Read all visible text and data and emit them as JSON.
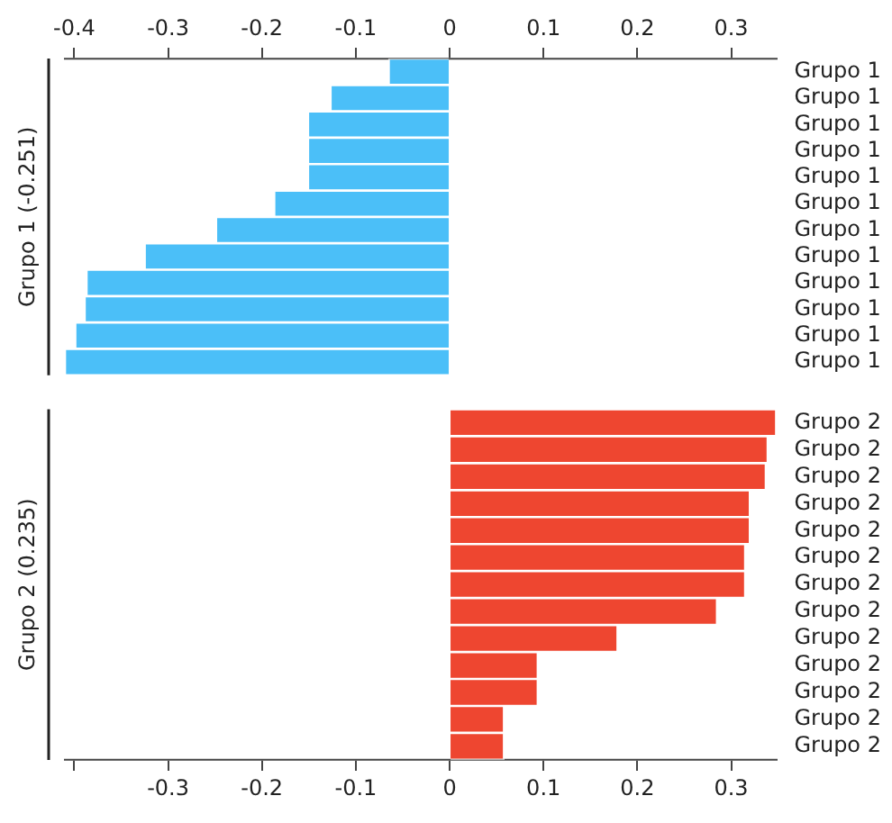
{
  "chart_data": [
    {
      "type": "bar",
      "orientation": "horizontal",
      "ylabel": "Grupo 1 (-0.251)",
      "categories": [
        "Grupo 1",
        "Grupo 1",
        "Grupo 1",
        "Grupo 1",
        "Grupo 1",
        "Grupo 1",
        "Grupo 1",
        "Grupo 1",
        "Grupo 1",
        "Grupo 1",
        "Grupo 1",
        "Grupo 1"
      ],
      "values": [
        -0.065,
        -0.127,
        -0.151,
        -0.151,
        -0.151,
        -0.187,
        -0.249,
        -0.325,
        -0.387,
        -0.389,
        -0.399,
        -0.41
      ],
      "color": "#4bbff8",
      "xlim": [
        -0.41,
        0.348
      ],
      "xticks": [
        -0.4,
        -0.3,
        -0.2,
        -0.1,
        0,
        0.1,
        0.2,
        0.3
      ],
      "grid": false
    },
    {
      "type": "bar",
      "orientation": "horizontal",
      "ylabel": "Grupo 2 (0.235)",
      "categories": [
        "Grupo 2",
        "Grupo 2",
        "Grupo 2",
        "Grupo 2",
        "Grupo 2",
        "Grupo 2",
        "Grupo 2",
        "Grupo 2",
        "Grupo 2",
        "Grupo 2",
        "Grupo 2",
        "Grupo 2",
        "Grupo 2"
      ],
      "values": [
        0.348,
        0.339,
        0.337,
        0.32,
        0.32,
        0.315,
        0.315,
        0.285,
        0.179,
        0.094,
        0.094,
        0.058,
        0.058
      ],
      "color": "#ee4630",
      "xlim": [
        -0.41,
        0.348
      ],
      "xticks": [
        {
          "value": -0.4,
          "label": null
        },
        -0.3,
        -0.2,
        -0.1,
        0,
        0.1,
        0.2,
        0.3
      ],
      "grid": false
    }
  ]
}
